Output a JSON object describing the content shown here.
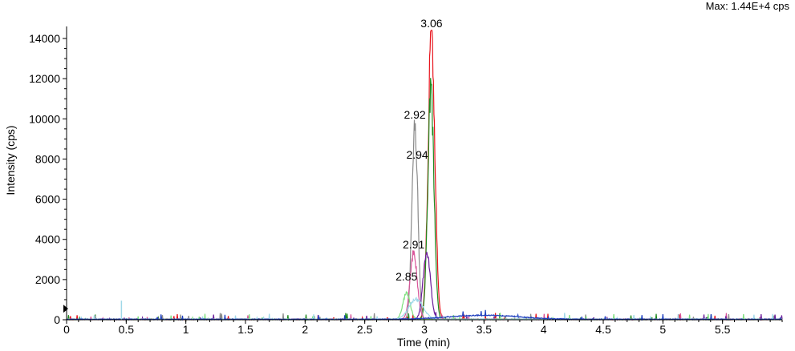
{
  "max_label": "Max: 1.44E+4 cps",
  "chart_data": {
    "type": "line",
    "xlabel": "Time (min)",
    "ylabel": "Intensity (cps)",
    "xlim": [
      0,
      6.0
    ],
    "ylim": [
      0,
      14400
    ],
    "x_ticks": [
      0,
      0.5,
      1,
      1.5,
      2,
      2.5,
      3,
      3.5,
      4,
      4.5,
      5,
      5.5
    ],
    "x_tick_labels": [
      "0",
      "0.5",
      "1",
      "1.5",
      "2",
      "2.5",
      "3",
      "3.5",
      "4",
      "4.5",
      "5",
      "5.5"
    ],
    "y_ticks": [
      0,
      2000,
      4000,
      6000,
      8000,
      10000,
      12000,
      14000
    ],
    "y_tick_labels": [
      "0",
      "2000",
      "4000",
      "6000",
      "8000",
      "10000",
      "12000",
      "14000"
    ],
    "grid": false,
    "series": [
      {
        "color": "#e8141c",
        "peak_rt": 3.06,
        "peak_height": 14300,
        "width": 0.028,
        "noise_seed": 1
      },
      {
        "color": "#1e8a1e",
        "peak_rt": 3.055,
        "peak_height": 11200,
        "width": 0.026,
        "noise_seed": 2
      },
      {
        "color": "#8a8a8a",
        "peak_rt": 2.92,
        "peak_height": 9800,
        "width": 0.024,
        "noise_seed": 3
      },
      {
        "color": "#d9569a",
        "peak_rt": 2.91,
        "peak_height": 3300,
        "width": 0.03,
        "noise_seed": 4
      },
      {
        "color": "#6a1b9a",
        "peak_rt": 3.02,
        "peak_height": 3400,
        "width": 0.03,
        "noise_seed": 5
      },
      {
        "color": "#7fe07f",
        "peak_rt": 2.85,
        "peak_height": 1300,
        "width": 0.03,
        "noise_seed": 6
      },
      {
        "color": "#9fd8e8",
        "peak_rt": 2.93,
        "peak_height": 1000,
        "width": 0.06,
        "noise_seed": 7
      },
      {
        "color": "#1f3fbf",
        "peak_rt": 3.5,
        "peak_height": 200,
        "width": 0.3,
        "noise_seed": 8
      }
    ],
    "annotations": [
      {
        "text": "3.06",
        "x": 3.06,
        "y": 14400
      },
      {
        "text": "2.92",
        "x": 2.92,
        "y": 9850
      },
      {
        "text": "2.94",
        "x": 2.94,
        "y": 7850
      },
      {
        "text": "2.91",
        "x": 2.91,
        "y": 3400
      },
      {
        "text": "2.85",
        "x": 2.85,
        "y": 1800
      }
    ]
  }
}
